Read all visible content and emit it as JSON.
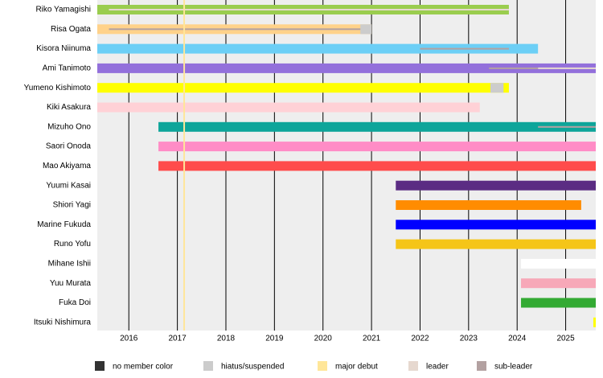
{
  "chart_data": {
    "type": "timeline",
    "xlim": [
      2015.35,
      2025.62
    ],
    "xticks": [
      2016,
      2017,
      2018,
      2019,
      2020,
      2021,
      2022,
      2023,
      2024,
      2025
    ],
    "grid": true,
    "background": "#eeeeee",
    "major_debut": [
      2017.14
    ],
    "legend": [
      {
        "name": "no member color",
        "color": "#333333"
      },
      {
        "name": "hiatus/suspended",
        "color": "#cccccc"
      },
      {
        "name": "major debut",
        "color": "#ffe699"
      },
      {
        "name": "leader",
        "color": "#e6d8cf"
      },
      {
        "name": "sub-leader",
        "color": "#b3a1a1"
      }
    ],
    "members": [
      {
        "name": "Riko Yamagishi",
        "color": "#9acd4e",
        "start": 2015.35,
        "end": 2023.83,
        "leader": [
          [
            2015.59,
            2023.83
          ]
        ]
      },
      {
        "name": "Risa Ogata",
        "color": "#ffd28a",
        "start": 2015.35,
        "end": 2021.0,
        "sub_leader": [
          [
            2015.59,
            2020.77
          ]
        ],
        "hiatus": [
          [
            2020.77,
            2021.0
          ]
        ]
      },
      {
        "name": "Kisora Niinuma",
        "color": "#6ccff6",
        "start": 2015.35,
        "end": 2024.43,
        "sub_leader": [
          [
            2022.0,
            2023.83
          ]
        ]
      },
      {
        "name": "Ami Tanimoto",
        "color": "#9370db",
        "start": 2015.35,
        "end": 2025.62,
        "sub_leader": [
          [
            2023.42,
            2024.43
          ]
        ],
        "leader": [
          [
            2024.43,
            2025.62
          ]
        ]
      },
      {
        "name": "Yumeno Kishimoto",
        "color": "#ffff00",
        "start": 2015.35,
        "end": 2023.83,
        "hiatus": [
          [
            2023.45,
            2023.72
          ]
        ]
      },
      {
        "name": "Kiki Asakura",
        "color": "#ffd1d6",
        "start": 2015.35,
        "end": 2023.23
      },
      {
        "name": "Mizuho Ono",
        "color": "#0ea59a",
        "start": 2016.61,
        "end": 2025.62,
        "sub_leader": [
          [
            2024.43,
            2025.62
          ]
        ]
      },
      {
        "name": "Saori Onoda",
        "color": "#ff8cc6",
        "start": 2016.61,
        "end": 2025.62
      },
      {
        "name": "Mao Akiyama",
        "color": "#ff4c4c",
        "start": 2016.61,
        "end": 2025.62
      },
      {
        "name": "Yuumi Kasai",
        "color": "#5b2c83",
        "start": 2021.5,
        "end": 2025.62
      },
      {
        "name": "Shiori Yagi",
        "color": "#ff8c00",
        "start": 2021.5,
        "end": 2025.32
      },
      {
        "name": "Marine Fukuda",
        "color": "#0000ff",
        "start": 2021.5,
        "end": 2025.62
      },
      {
        "name": "Runo Yofu",
        "color": "#f5c518",
        "start": 2021.5,
        "end": 2025.62
      },
      {
        "name": "Mihane Ishii",
        "color": "#ffffff",
        "start": 2024.08,
        "end": 2025.62
      },
      {
        "name": "Yuu Murata",
        "color": "#f7a8b8",
        "start": 2024.08,
        "end": 2025.62
      },
      {
        "name": "Fuka Doi",
        "color": "#33aa33",
        "start": 2024.08,
        "end": 2025.62
      },
      {
        "name": "Itsuki Nishimura",
        "color": "#ffff00",
        "start": 2025.57,
        "end": 2025.62
      }
    ]
  }
}
